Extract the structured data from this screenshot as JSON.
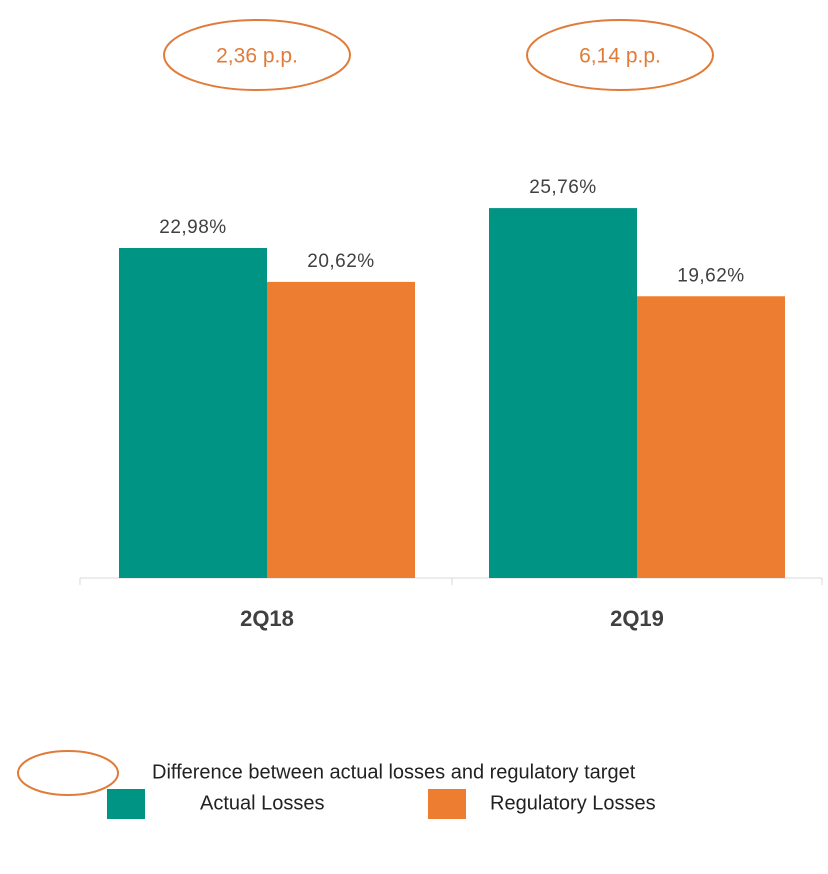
{
  "chart_data": {
    "type": "bar",
    "categories": [
      "2Q18",
      "2Q19"
    ],
    "series": [
      {
        "name": "Actual Losses",
        "color": "#009484",
        "values": [
          22.98,
          25.76
        ],
        "value_labels": [
          "22,98%",
          "25,76%"
        ]
      },
      {
        "name": "Regulatory Losses",
        "color": "#ED7D31",
        "values": [
          20.62,
          19.62
        ],
        "value_labels": [
          "20,62%",
          "19,62%"
        ]
      }
    ],
    "annotations": [
      "2,36 p.p.",
      "6,14 p.p."
    ],
    "annotation_legend": "Difference between actual losses and regulatory target",
    "annotation_color": "#E07B39"
  }
}
